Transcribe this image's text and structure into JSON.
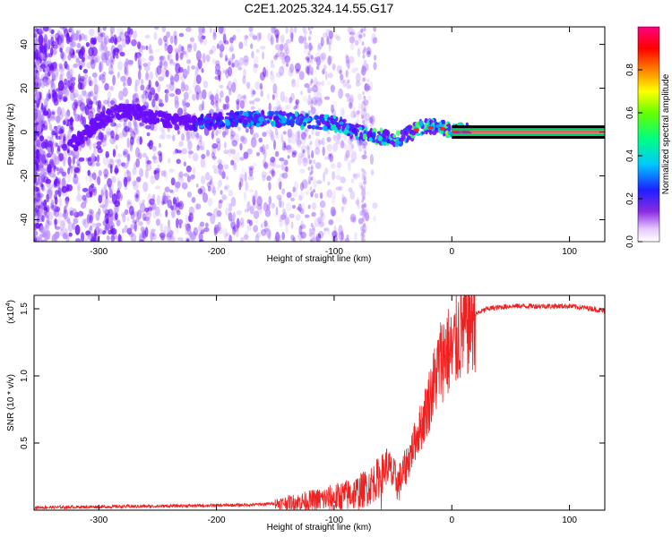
{
  "title": "C2E1.2025.324.14.55.G17",
  "colors": {
    "density": "#6a0dff",
    "snr_line": "#ee2020",
    "axes": "#000000"
  },
  "chart_data": [
    {
      "type": "heatmap",
      "name": "spectrogram",
      "xlabel": "Height of straight line (km)",
      "ylabel": "Frequency (Hz)",
      "xlim": [
        -355,
        130
      ],
      "ylim": [
        -50,
        48
      ],
      "x_ticks": [
        -300,
        -200,
        -100,
        0,
        100
      ],
      "y_ticks": [
        -40,
        -20,
        0,
        20,
        40
      ],
      "x_tick_labels": [
        "-300",
        "-200",
        "-100",
        "0",
        "100"
      ],
      "y_tick_labels": [
        "-40",
        "-20",
        "0",
        "20",
        "40"
      ],
      "ridge": {
        "x": [
          -320,
          -300,
          -280,
          -260,
          -240,
          -220,
          -200,
          -180,
          -160,
          -140,
          -120,
          -100,
          -90,
          -80,
          -70,
          -60,
          -50,
          -40,
          -30,
          -20,
          -10,
          0,
          10,
          20,
          130
        ],
        "y": [
          -5,
          5,
          10,
          8,
          5,
          4,
          5,
          6,
          6,
          6,
          5,
          4,
          2,
          0,
          -1,
          -2,
          -3,
          -2,
          1,
          3,
          2,
          1,
          0.5,
          0,
          0
        ]
      },
      "colorbar": {
        "label": "Normalized spectral amplitude",
        "range": [
          0,
          1
        ],
        "ticks": [
          0.0,
          0.2,
          0.4,
          0.6,
          0.8
        ],
        "tick_labels": [
          "0.0",
          "0.2",
          "0.4",
          "0.6",
          "0.8"
        ]
      }
    },
    {
      "type": "line",
      "name": "snr",
      "xlabel": "Height of straight line (km)",
      "ylabel": "SNR (10 * v/v)",
      "y_scale_note": "(x10",
      "y_scale_exp": "4",
      "xlim": [
        -355,
        130
      ],
      "ylim": [
        0,
        1.6
      ],
      "x_ticks": [
        -300,
        -200,
        -100,
        0,
        100
      ],
      "y_ticks": [
        0.5,
        1.0,
        1.5
      ],
      "x_tick_labels": [
        "-300",
        "-200",
        "-100",
        "0",
        "100"
      ],
      "y_tick_labels": [
        "0.5",
        "1.0",
        "1.5"
      ],
      "series": [
        {
          "name": "SNR",
          "x": [
            -355,
            -300,
            -250,
            -200,
            -170,
            -150,
            -120,
            -100,
            -80,
            -70,
            -60,
            -55,
            -50,
            -45,
            -40,
            -35,
            -30,
            -25,
            -20,
            -15,
            -10,
            -5,
            0,
            5,
            10,
            15,
            20,
            25,
            30,
            40,
            50,
            60,
            80,
            100,
            120,
            130
          ],
          "y": [
            0.02,
            0.025,
            0.03,
            0.035,
            0.04,
            0.05,
            0.07,
            0.09,
            0.13,
            0.18,
            0.26,
            0.34,
            0.25,
            0.2,
            0.3,
            0.42,
            0.55,
            0.65,
            0.8,
            0.95,
            1.1,
            1.2,
            1.15,
            1.3,
            1.35,
            1.42,
            1.46,
            1.48,
            1.5,
            1.51,
            1.52,
            1.52,
            1.52,
            1.52,
            1.5,
            1.48
          ]
        }
      ]
    }
  ]
}
